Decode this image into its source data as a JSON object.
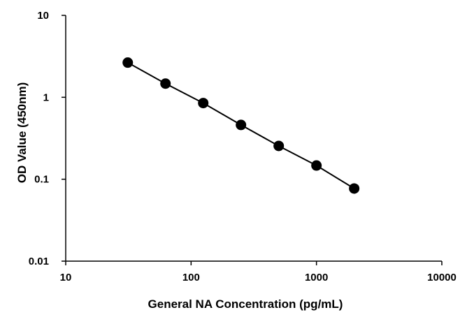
{
  "chart_data": {
    "type": "scatter",
    "title": "",
    "xlabel": "General NA Concentration (pg/mL)",
    "ylabel": "OD Value (450nm)",
    "xscale": "log",
    "yscale": "log",
    "xlim": [
      10,
      10000
    ],
    "ylim": [
      0.01,
      10
    ],
    "x_ticks": [
      "10",
      "100",
      "1000",
      "10000"
    ],
    "y_ticks": [
      "0.01",
      "0.1",
      "1",
      "10"
    ],
    "grid": false,
    "line": true,
    "series": [
      {
        "x": [
          31.25,
          62.5,
          125,
          250,
          500,
          1000,
          2000
        ],
        "y": [
          2.65,
          1.47,
          0.85,
          0.46,
          0.255,
          0.147,
          0.077
        ]
      }
    ]
  }
}
